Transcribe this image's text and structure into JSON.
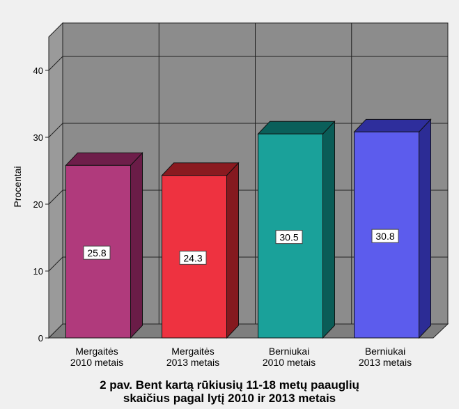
{
  "caption": {
    "line1": "2 pav. Bent kartą rūkiusių 11-18 metų paauglių",
    "line2": "skaičius pagal lytį 2010 ir 2013 metais"
  },
  "chart_data": {
    "type": "bar",
    "title": "2 pav. Bent kartą rūkiusių 11-18 metų paauglių skaičius pagal lytį 2010 ir 2013 metais",
    "xlabel": "",
    "ylabel": "Procentai",
    "ylim": [
      0,
      45
    ],
    "yticks": [
      0,
      10,
      20,
      30,
      40
    ],
    "grid": true,
    "three_d": true,
    "categories": [
      [
        "Mergaitės",
        "2010 metais"
      ],
      [
        "Mergaitės",
        "2013 metais"
      ],
      [
        "Berniukai",
        "2010 metais"
      ],
      [
        "Berniukai",
        "2013 metais"
      ]
    ],
    "values": [
      25.8,
      24.3,
      30.5,
      30.8
    ],
    "data_labels": [
      "25.8",
      "24.3",
      "30.5",
      "30.8"
    ],
    "colors": {
      "front": [
        "#b03a7c",
        "#ee3240",
        "#1aa19a",
        "#5c5ced"
      ],
      "top": [
        "#6e1e4a",
        "#8a1a20",
        "#0a5f5a",
        "#2e2e9c"
      ],
      "side": [
        "#6a1c47",
        "#85191f",
        "#0a5c57",
        "#2c2c95"
      ]
    }
  }
}
